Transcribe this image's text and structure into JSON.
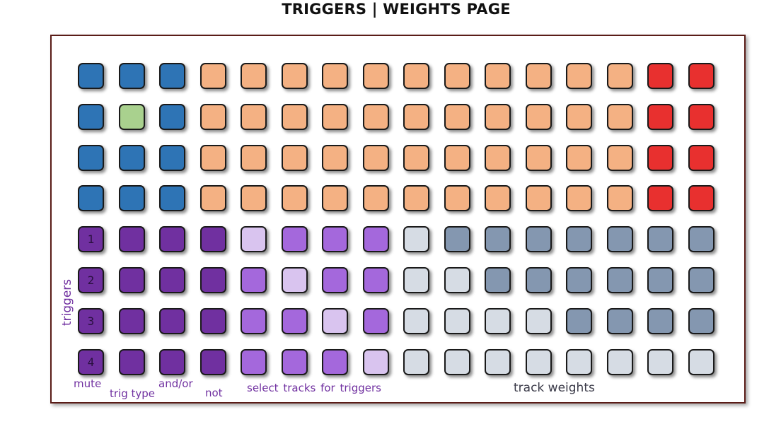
{
  "title": "TRIGGERS | WEIGHTS PAGE",
  "colors": {
    "blue": "#2e74b5",
    "green": "#a9d18e",
    "orange": "#f4b183",
    "red": "#e8302f",
    "purple_dark": "#7030a0",
    "purple_mid": "#a468dc",
    "purple_light": "#d9c4ef",
    "gray_light": "#d6dce4",
    "gray_dark": "#8497b0"
  },
  "grid": {
    "columns": 16,
    "rows": [
      [
        "blue",
        "blue",
        "blue",
        "orange",
        "orange",
        "orange",
        "orange",
        "orange",
        "orange",
        "orange",
        "orange",
        "orange",
        "orange",
        "orange",
        "red",
        "red"
      ],
      [
        "blue",
        "green",
        "blue",
        "orange",
        "orange",
        "orange",
        "orange",
        "orange",
        "orange",
        "orange",
        "orange",
        "orange",
        "orange",
        "orange",
        "red",
        "red"
      ],
      [
        "blue",
        "blue",
        "blue",
        "orange",
        "orange",
        "orange",
        "orange",
        "orange",
        "orange",
        "orange",
        "orange",
        "orange",
        "orange",
        "orange",
        "red",
        "red"
      ],
      [
        "blue",
        "blue",
        "blue",
        "orange",
        "orange",
        "orange",
        "orange",
        "orange",
        "orange",
        "orange",
        "orange",
        "orange",
        "orange",
        "orange",
        "red",
        "red"
      ],
      [
        "purple_dark",
        "purple_dark",
        "purple_dark",
        "purple_dark",
        "purple_light",
        "purple_mid",
        "purple_mid",
        "purple_mid",
        "gray_light",
        "gray_dark",
        "gray_dark",
        "gray_dark",
        "gray_dark",
        "gray_dark",
        "gray_dark",
        "gray_dark"
      ],
      [
        "purple_dark",
        "purple_dark",
        "purple_dark",
        "purple_dark",
        "purple_mid",
        "purple_light",
        "purple_mid",
        "purple_mid",
        "gray_light",
        "gray_light",
        "gray_dark",
        "gray_dark",
        "gray_dark",
        "gray_dark",
        "gray_dark",
        "gray_dark"
      ],
      [
        "purple_dark",
        "purple_dark",
        "purple_dark",
        "purple_dark",
        "purple_mid",
        "purple_mid",
        "purple_light",
        "purple_mid",
        "gray_light",
        "gray_light",
        "gray_light",
        "gray_light",
        "gray_dark",
        "gray_dark",
        "gray_dark",
        "gray_dark"
      ],
      [
        "purple_dark",
        "purple_dark",
        "purple_dark",
        "purple_dark",
        "purple_mid",
        "purple_mid",
        "purple_mid",
        "purple_light",
        "gray_light",
        "gray_light",
        "gray_light",
        "gray_light",
        "gray_light",
        "gray_light",
        "gray_light",
        "gray_light"
      ]
    ],
    "trigger_numbers": [
      "1",
      "2",
      "3",
      "4"
    ]
  },
  "labels": {
    "triggers": "triggers",
    "mute": "mute",
    "trig_type": "trig type",
    "and_or": "and/or",
    "not": "not",
    "select_tracks": "select tracks for triggers",
    "track_weights": "track weights"
  }
}
